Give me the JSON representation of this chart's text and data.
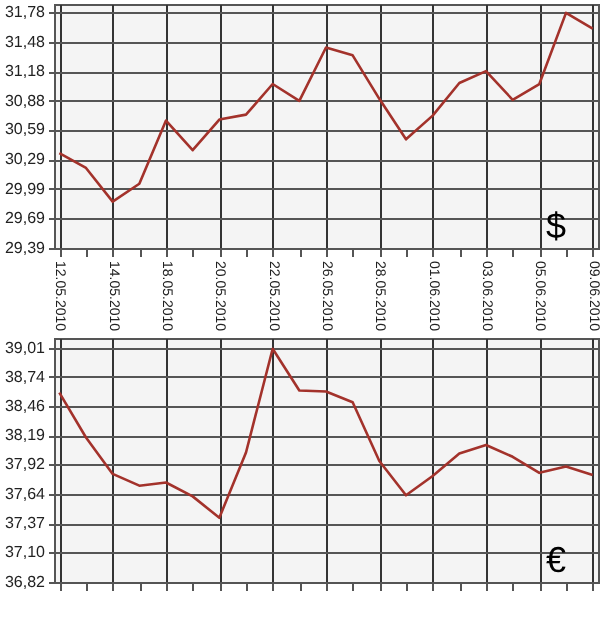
{
  "chart_data": [
    {
      "type": "line",
      "categories": [
        "12.05.2010",
        null,
        "14.05.2010",
        null,
        "18.05.2010",
        null,
        "20.05.2010",
        null,
        "22.05.2010",
        null,
        "26.05.2010",
        null,
        "28.05.2010",
        null,
        "01.06.2010",
        null,
        "03.06.2010",
        null,
        "05.06.2010",
        null,
        "09.06.2010"
      ],
      "series": [
        {
          "color": "#a3322b",
          "values": [
            30.35,
            30.2,
            29.86,
            30.04,
            30.68,
            30.38,
            30.69,
            30.74,
            31.05,
            30.88,
            31.42,
            31.34,
            30.9,
            30.49,
            30.73,
            31.06,
            31.18,
            30.89,
            31.05,
            31.77,
            31.61
          ]
        }
      ],
      "ylim": [
        29.39,
        31.86
      ],
      "yticks": [
        {
          "value": 29.39,
          "label": "29,39"
        },
        {
          "value": 29.69,
          "label": "29,69"
        },
        {
          "value": 29.99,
          "label": "29,99"
        },
        {
          "value": 30.29,
          "label": "30,29"
        },
        {
          "value": 30.59,
          "label": "30,59"
        },
        {
          "value": 30.88,
          "label": "30,88"
        },
        {
          "value": 31.18,
          "label": "31,18"
        },
        {
          "value": 31.48,
          "label": "31,48"
        },
        {
          "value": 31.78,
          "label": "31,78"
        }
      ],
      "grid": true,
      "annotations": [
        "$"
      ]
    },
    {
      "type": "line",
      "categories": [
        "12.05.2010",
        null,
        "14.05.2010",
        null,
        "18.05.2010",
        null,
        "20.05.2010",
        null,
        "22.05.2010",
        null,
        "26.05.2010",
        null,
        "28.05.2010",
        null,
        "01.06.2010",
        null,
        "03.06.2010",
        null,
        "05.06.2010",
        null,
        "09.06.2010"
      ],
      "series": [
        {
          "color": "#a3322b",
          "values": [
            38.59,
            38.17,
            37.83,
            37.72,
            37.75,
            37.62,
            37.42,
            38.03,
            39.0,
            38.61,
            38.6,
            38.5,
            37.95,
            37.63,
            37.81,
            38.02,
            38.1,
            37.99,
            37.84,
            37.9,
            37.82
          ]
        }
      ],
      "ylim": [
        36.82,
        39.1
      ],
      "yticks": [
        {
          "value": 36.82,
          "label": "36,82"
        },
        {
          "value": 37.1,
          "label": "37,10"
        },
        {
          "value": 37.37,
          "label": "37,37"
        },
        {
          "value": 37.64,
          "label": "37,64"
        },
        {
          "value": 37.92,
          "label": "37,92"
        },
        {
          "value": 38.19,
          "label": "38,19"
        },
        {
          "value": 38.46,
          "label": "38,46"
        },
        {
          "value": 38.74,
          "label": "38,74"
        },
        {
          "value": 39.01,
          "label": "39,01"
        }
      ],
      "grid": true,
      "tick_labels": "y",
      "annotations": [
        "€"
      ]
    }
  ]
}
